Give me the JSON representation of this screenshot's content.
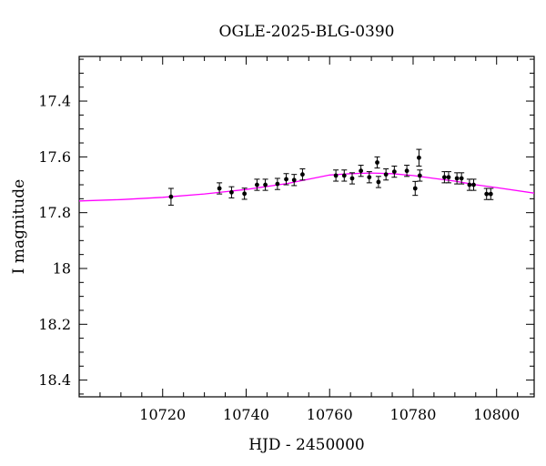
{
  "chart_data": {
    "type": "scatter",
    "title": "OGLE-2025-BLG-0390",
    "xlabel": "HJD - 2450000",
    "ylabel": "I magnitude",
    "xlim": [
      10700,
      10809
    ],
    "ylim": [
      18.46,
      17.24
    ],
    "y_inverted": true,
    "x_ticks": [
      10720,
      10740,
      10760,
      10780,
      10800
    ],
    "x_tick_labels": [
      "10720",
      "10740",
      "10760",
      "10780",
      "10800"
    ],
    "y_ticks": [
      17.4,
      17.6,
      17.8,
      18,
      18.2,
      18.4
    ],
    "y_tick_labels": [
      "17.4",
      "17.6",
      "17.8",
      "18",
      "18.2",
      "18.4"
    ],
    "grid": false,
    "colors": {
      "points": "#000000",
      "model": "#ff00ff",
      "axes": "#000000"
    },
    "series": [
      {
        "type": "scatter",
        "points": [
          {
            "x": 10722.0,
            "y": 17.743,
            "err": 0.03
          },
          {
            "x": 10733.6,
            "y": 17.713,
            "err": 0.02
          },
          {
            "x": 10736.5,
            "y": 17.727,
            "err": 0.02
          },
          {
            "x": 10739.6,
            "y": 17.732,
            "err": 0.02
          },
          {
            "x": 10742.6,
            "y": 17.7,
            "err": 0.02
          },
          {
            "x": 10744.6,
            "y": 17.7,
            "err": 0.02
          },
          {
            "x": 10747.5,
            "y": 17.697,
            "err": 0.02
          },
          {
            "x": 10749.6,
            "y": 17.68,
            "err": 0.02
          },
          {
            "x": 10751.5,
            "y": 17.683,
            "err": 0.02
          },
          {
            "x": 10753.5,
            "y": 17.663,
            "err": 0.02
          },
          {
            "x": 10761.5,
            "y": 17.667,
            "err": 0.02
          },
          {
            "x": 10763.5,
            "y": 17.667,
            "err": 0.02
          },
          {
            "x": 10765.4,
            "y": 17.677,
            "err": 0.02
          },
          {
            "x": 10767.5,
            "y": 17.65,
            "err": 0.02
          },
          {
            "x": 10769.5,
            "y": 17.673,
            "err": 0.02
          },
          {
            "x": 10771.4,
            "y": 17.62,
            "err": 0.02
          },
          {
            "x": 10771.7,
            "y": 17.69,
            "err": 0.02
          },
          {
            "x": 10773.5,
            "y": 17.663,
            "err": 0.02
          },
          {
            "x": 10775.5,
            "y": 17.653,
            "err": 0.02
          },
          {
            "x": 10778.5,
            "y": 17.65,
            "err": 0.02
          },
          {
            "x": 10780.5,
            "y": 17.713,
            "err": 0.025
          },
          {
            "x": 10781.4,
            "y": 17.603,
            "err": 0.03
          },
          {
            "x": 10781.6,
            "y": 17.667,
            "err": 0.02
          },
          {
            "x": 10787.5,
            "y": 17.673,
            "err": 0.02
          },
          {
            "x": 10788.5,
            "y": 17.673,
            "err": 0.02
          },
          {
            "x": 10790.5,
            "y": 17.677,
            "err": 0.02
          },
          {
            "x": 10791.6,
            "y": 17.677,
            "err": 0.02
          },
          {
            "x": 10793.5,
            "y": 17.7,
            "err": 0.02
          },
          {
            "x": 10794.5,
            "y": 17.7,
            "err": 0.02
          },
          {
            "x": 10797.6,
            "y": 17.733,
            "err": 0.02
          },
          {
            "x": 10798.6,
            "y": 17.733,
            "err": 0.02
          }
        ]
      },
      {
        "type": "line",
        "points": [
          {
            "x": 10700,
            "y": 17.758
          },
          {
            "x": 10710,
            "y": 17.753
          },
          {
            "x": 10720,
            "y": 17.745
          },
          {
            "x": 10730,
            "y": 17.733
          },
          {
            "x": 10740,
            "y": 17.717
          },
          {
            "x": 10750,
            "y": 17.695
          },
          {
            "x": 10755,
            "y": 17.68
          },
          {
            "x": 10760,
            "y": 17.665
          },
          {
            "x": 10765,
            "y": 17.66
          },
          {
            "x": 10770,
            "y": 17.658
          },
          {
            "x": 10775,
            "y": 17.66
          },
          {
            "x": 10780,
            "y": 17.667
          },
          {
            "x": 10785,
            "y": 17.677
          },
          {
            "x": 10790,
            "y": 17.687
          },
          {
            "x": 10795,
            "y": 17.7
          },
          {
            "x": 10800,
            "y": 17.71
          },
          {
            "x": 10809,
            "y": 17.73
          }
        ]
      }
    ]
  }
}
